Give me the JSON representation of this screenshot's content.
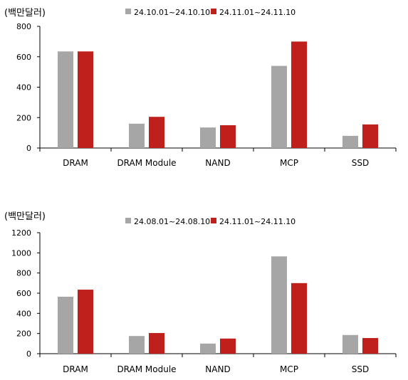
{
  "chart_data": [
    {
      "type": "bar",
      "unit_label": "(백만달러)",
      "categories": [
        "DRAM",
        "DRAM Module",
        "NAND",
        "MCP",
        "SSD"
      ],
      "series": [
        {
          "name": "24.10.01~24.10.10",
          "values": [
            635,
            160,
            135,
            540,
            80
          ],
          "color": "#a6a6a6"
        },
        {
          "name": "24.11.01~24.11.10",
          "values": [
            635,
            205,
            150,
            700,
            155
          ],
          "color": "#c0201c"
        }
      ],
      "ylim": [
        0,
        800
      ],
      "yticks": [
        0,
        200,
        400,
        600,
        800
      ],
      "grid": false,
      "legend_position": "top"
    },
    {
      "type": "bar",
      "unit_label": "(백만달러)",
      "categories": [
        "DRAM",
        "DRAM Module",
        "NAND",
        "MCP",
        "SSD"
      ],
      "series": [
        {
          "name": "24.08.01~24.08.10",
          "values": [
            565,
            175,
            100,
            965,
            185
          ],
          "color": "#a6a6a6"
        },
        {
          "name": "24.11.01~24.11.10",
          "values": [
            635,
            205,
            150,
            700,
            155
          ],
          "color": "#c0201c"
        }
      ],
      "ylim": [
        0,
        1200
      ],
      "yticks": [
        0,
        200,
        400,
        600,
        800,
        1000,
        1200
      ],
      "grid": false,
      "legend_position": "top"
    }
  ]
}
